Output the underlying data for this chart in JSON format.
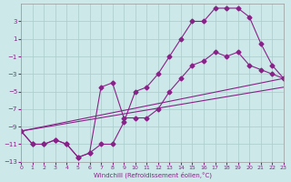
{
  "xlabel": "Windchill (Refroidissement éolien,°C)",
  "bg_color": "#cce8e8",
  "line_color": "#882288",
  "xlim": [
    0,
    23
  ],
  "ylim": [
    -13,
    5
  ],
  "xticks": [
    0,
    1,
    2,
    3,
    4,
    5,
    6,
    7,
    8,
    9,
    10,
    11,
    12,
    13,
    14,
    15,
    16,
    17,
    18,
    19,
    20,
    21,
    22,
    23
  ],
  "yticks": [
    -13,
    -11,
    -9,
    -7,
    -5,
    -3,
    -1,
    1,
    3
  ],
  "line1_x": [
    0,
    1,
    2,
    3,
    4,
    5,
    6,
    7,
    8,
    9,
    10,
    11,
    12,
    13,
    14,
    15,
    16,
    17,
    18,
    19,
    20,
    21,
    22,
    23
  ],
  "line1_y": [
    -9.5,
    -11,
    -11,
    -10.5,
    -11,
    -12.5,
    -12,
    -11,
    -11,
    -8.5,
    -5,
    -4.5,
    -3,
    -1,
    1,
    3,
    3,
    4.5,
    4.5,
    4.5,
    3.5,
    0.5,
    -2,
    -3.5
  ],
  "line2_x": [
    0,
    1,
    2,
    3,
    4,
    5,
    6,
    7,
    8,
    9,
    10,
    11,
    12,
    13,
    14,
    15,
    16,
    17,
    18,
    19,
    20,
    21,
    22,
    23
  ],
  "line2_y": [
    -9.5,
    -11,
    -11,
    -10.5,
    -11,
    -12.5,
    -12,
    -4.5,
    -4,
    -8,
    -8,
    -8,
    -7,
    -5,
    -3.5,
    -2,
    -1.5,
    -0.5,
    -1,
    -0.5,
    -2,
    -2.5,
    -3,
    -3.5
  ],
  "line3_x": [
    0,
    23
  ],
  "line3_y": [
    -9.5,
    -3.5
  ],
  "line4_x": [
    0,
    23
  ],
  "line4_y": [
    -9.5,
    -4.5
  ],
  "grid_color": "#aacccc"
}
